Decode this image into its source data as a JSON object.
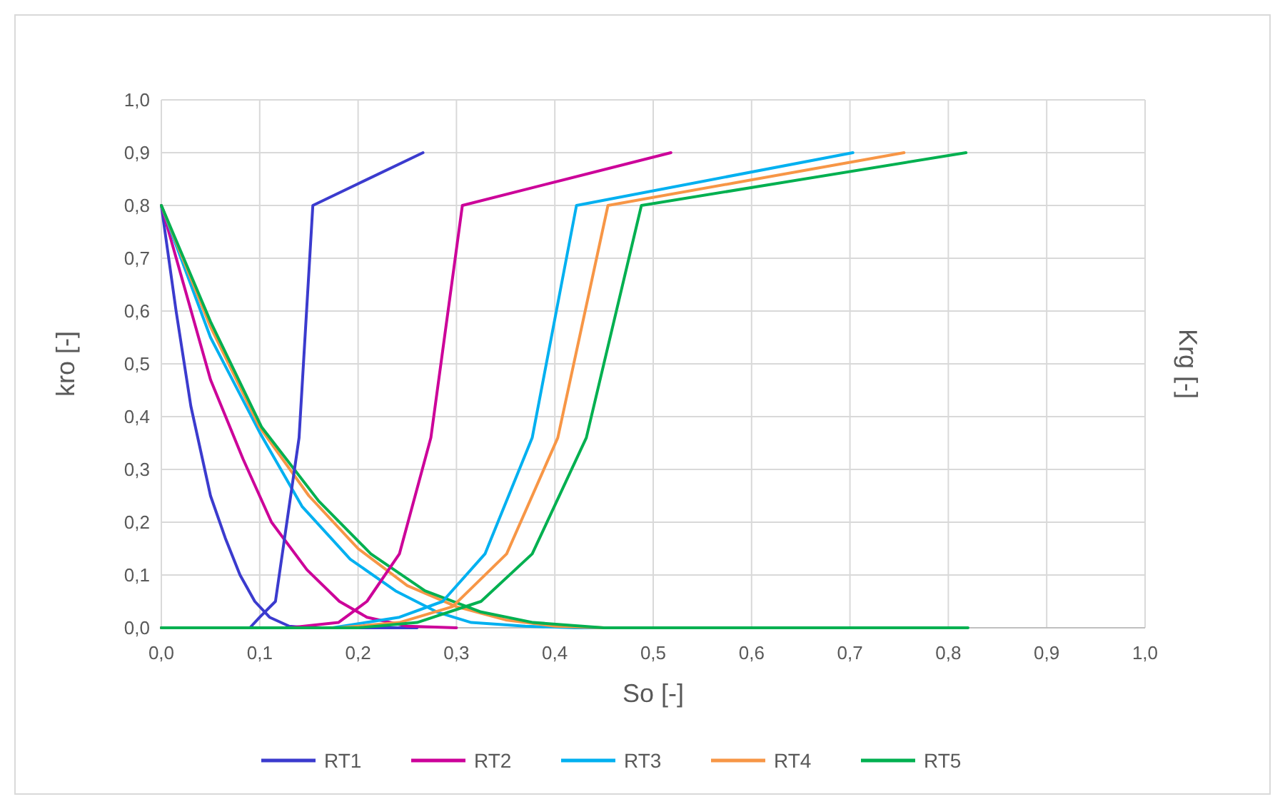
{
  "chart_data": {
    "type": "line",
    "xlabel": "So [-]",
    "ylabel": "kro [-]",
    "y2label": "Krg [-]",
    "xlim": [
      0,
      1
    ],
    "ylim": [
      0,
      1
    ],
    "xticks": [
      {
        "value": 0,
        "label": "0,0"
      },
      {
        "value": 0.1,
        "label": "0,1"
      },
      {
        "value": 0.2,
        "label": "0,2"
      },
      {
        "value": 0.3,
        "label": "0,3"
      },
      {
        "value": 0.4,
        "label": "0,4"
      },
      {
        "value": 0.5,
        "label": "0,5"
      },
      {
        "value": 0.6,
        "label": "0,6"
      },
      {
        "value": 0.7,
        "label": "0,7"
      },
      {
        "value": 0.8,
        "label": "0,8"
      },
      {
        "value": 0.9,
        "label": "0,9"
      },
      {
        "value": 1,
        "label": "1,0"
      }
    ],
    "yticks": [
      {
        "value": 0,
        "label": "0,0"
      },
      {
        "value": 0.1,
        "label": "0,1"
      },
      {
        "value": 0.2,
        "label": "0,2"
      },
      {
        "value": 0.3,
        "label": "0,3"
      },
      {
        "value": 0.4,
        "label": "0,4"
      },
      {
        "value": 0.5,
        "label": "0,5"
      },
      {
        "value": 0.6,
        "label": "0,6"
      },
      {
        "value": 0.7,
        "label": "0,7"
      },
      {
        "value": 0.8,
        "label": "0,8"
      },
      {
        "value": 0.9,
        "label": "0,9"
      },
      {
        "value": 1,
        "label": "1,0"
      }
    ],
    "grid": true,
    "legend": "bottom",
    "marker": "none",
    "line_style": "solid",
    "series": [
      {
        "name": "RT1",
        "color": "#3b3bce",
        "x": [
          0,
          0.015,
          0.03,
          0.05,
          0.065,
          0.08,
          0.095,
          0.11,
          0.13,
          0.15,
          0.26
        ],
        "values": [
          0.8,
          0.6,
          0.42,
          0.25,
          0.17,
          0.1,
          0.05,
          0.02,
          0.003,
          0,
          0
        ]
      },
      {
        "name": "RT2",
        "color": "#cc0099",
        "x": [
          0,
          0.05,
          0.083,
          0.112,
          0.148,
          0.181,
          0.209,
          0.25,
          0.3
        ],
        "values": [
          0.8,
          0.47,
          0.32,
          0.2,
          0.11,
          0.05,
          0.02,
          0.003,
          0
        ]
      },
      {
        "name": "RT3",
        "color": "#00b0f0",
        "x": [
          0,
          0.05,
          0.1,
          0.143,
          0.192,
          0.238,
          0.28,
          0.315,
          0.37,
          0.42,
          0.7
        ],
        "values": [
          0.8,
          0.55,
          0.37,
          0.23,
          0.13,
          0.07,
          0.03,
          0.01,
          0.003,
          0,
          0
        ]
      },
      {
        "name": "RT4",
        "color": "#f79646",
        "x": [
          0,
          0.05,
          0.1,
          0.15,
          0.2,
          0.25,
          0.3,
          0.35,
          0.4,
          0.45,
          0.75
        ],
        "values": [
          0.8,
          0.57,
          0.38,
          0.25,
          0.15,
          0.08,
          0.04,
          0.015,
          0.003,
          0,
          0
        ]
      },
      {
        "name": "RT5",
        "color": "#00b050",
        "x": [
          0,
          0.05,
          0.102,
          0.16,
          0.213,
          0.268,
          0.325,
          0.378,
          0.45,
          0.82
        ],
        "values": [
          0.8,
          0.58,
          0.38,
          0.24,
          0.14,
          0.07,
          0.03,
          0.01,
          0,
          0
        ]
      },
      {
        "color": "#3b3bce",
        "x": [
          0,
          0.09,
          0.1,
          0.116,
          0.14,
          0.154,
          0.266
        ],
        "values": [
          0,
          0,
          0.02,
          0.05,
          0.36,
          0.8,
          0.9
        ]
      },
      {
        "color": "#cc0099",
        "x": [
          0,
          0.13,
          0.18,
          0.209,
          0.242,
          0.274,
          0.306,
          0.518
        ],
        "values": [
          0,
          0,
          0.01,
          0.05,
          0.14,
          0.36,
          0.8,
          0.9
        ]
      },
      {
        "color": "#00b0f0",
        "x": [
          0,
          0.174,
          0.242,
          0.286,
          0.329,
          0.377,
          0.422,
          0.703
        ],
        "values": [
          0,
          0,
          0.02,
          0.05,
          0.14,
          0.36,
          0.8,
          0.9
        ]
      },
      {
        "color": "#f79646",
        "x": [
          0,
          0.18,
          0.242,
          0.296,
          0.351,
          0.403,
          0.454,
          0.755
        ],
        "values": [
          0,
          0,
          0.01,
          0.04,
          0.14,
          0.36,
          0.8,
          0.9
        ]
      },
      {
        "color": "#00b050",
        "x": [
          0,
          0.2,
          0.26,
          0.325,
          0.377,
          0.432,
          0.488,
          0.818
        ],
        "values": [
          0,
          0,
          0.01,
          0.05,
          0.14,
          0.36,
          0.8,
          0.9
        ]
      }
    ]
  }
}
